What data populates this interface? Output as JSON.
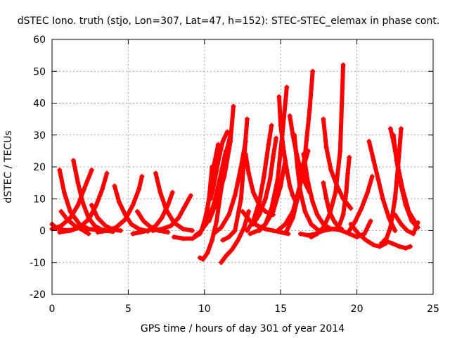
{
  "chart_data": {
    "type": "scatter",
    "title": "dSTEC Iono. truth (stjo, Lon=307, Lat=47, h=152): STEC-STEC_elemax in phase cont.",
    "xlabel": "GPS time / hours of day 301 of year 2014",
    "ylabel": "dSTEC  / TECUs",
    "xlim": [
      0,
      25
    ],
    "ylim": [
      -20,
      60
    ],
    "xticks": [
      0,
      5,
      10,
      15,
      20,
      25
    ],
    "yticks": [
      -20,
      -10,
      0,
      10,
      20,
      30,
      40,
      50,
      60
    ],
    "grid": true,
    "marker": "+",
    "color": "#ff0000",
    "series": [
      {
        "x": [
          0.0,
          0.3,
          0.7,
          1.1,
          1.4
        ],
        "y": [
          2,
          0.8,
          0.2,
          0.1,
          0.3
        ]
      },
      {
        "x": [
          0.5,
          0.8,
          1.2,
          1.8,
          2.4,
          3.0
        ],
        "y": [
          19,
          12,
          6,
          2,
          0.5,
          0.2
        ]
      },
      {
        "x": [
          0.6,
          1.0,
          1.5,
          2.0,
          2.4
        ],
        "y": [
          6,
          3.5,
          1.5,
          0.2,
          -1
        ]
      },
      {
        "x": [
          0.0,
          0.6,
          1.2,
          1.7,
          2.1,
          2.6
        ],
        "y": [
          0.5,
          1.5,
          4,
          8,
          13,
          19
        ]
      },
      {
        "x": [
          1.4,
          1.7,
          2.0,
          2.4,
          2.8,
          3.3,
          4.0
        ],
        "y": [
          22,
          15,
          9,
          4,
          1.5,
          0.2,
          -0.3
        ]
      },
      {
        "x": [
          0.5,
          1.2,
          1.8,
          2.4,
          2.9,
          3.3,
          3.6
        ],
        "y": [
          -0.5,
          0,
          1,
          3.5,
          8,
          13,
          18
        ]
      },
      {
        "x": [
          2.6,
          3.0,
          3.5,
          4.0,
          4.5
        ],
        "y": [
          8,
          4,
          1.5,
          0.3,
          0
        ]
      },
      {
        "x": [
          4.1,
          4.4,
          4.8,
          5.2,
          5.7,
          6.3
        ],
        "y": [
          14,
          9,
          5,
          2,
          0.5,
          -0.2
        ]
      },
      {
        "x": [
          3.0,
          3.6,
          4.2,
          4.8,
          5.3,
          5.7,
          5.9
        ],
        "y": [
          -0.5,
          0,
          1,
          3.5,
          8,
          13,
          17
        ]
      },
      {
        "x": [
          5.6,
          6.0,
          6.5,
          7.0,
          7.6
        ],
        "y": [
          6,
          3,
          1,
          0,
          -0.5
        ]
      },
      {
        "x": [
          6.8,
          7.1,
          7.5,
          8.0,
          8.6,
          9.2
        ],
        "y": [
          18,
          12,
          6.5,
          2.5,
          0.5,
          0
        ]
      },
      {
        "x": [
          5.3,
          5.8,
          6.3,
          6.8,
          7.2,
          7.6,
          7.9
        ],
        "y": [
          -1,
          -0.5,
          0,
          1.5,
          4,
          8,
          12
        ]
      },
      {
        "x": [
          6.6,
          7.2,
          7.8,
          8.3,
          8.7,
          9.1
        ],
        "y": [
          0,
          0.5,
          1.5,
          4,
          7.5,
          11
        ]
      },
      {
        "x": [
          8.0,
          8.6,
          9.2,
          9.7,
          10.0,
          10.3,
          10.5
        ],
        "y": [
          -2,
          -2.5,
          -2.5,
          -1,
          2,
          10,
          20
        ]
      },
      {
        "x": [
          9.7,
          9.9,
          10.2,
          10.5,
          10.8,
          11.0,
          11.3,
          11.5,
          11.7
        ],
        "y": [
          -8.5,
          -9,
          -7,
          -3,
          3,
          10,
          19,
          26,
          30
        ]
      },
      {
        "x": [
          9.8,
          10.0,
          10.2,
          10.4,
          10.6,
          10.9
        ],
        "y": [
          0,
          3,
          7,
          13,
          20,
          27
        ]
      },
      {
        "x": [
          9.4,
          9.7,
          10.1,
          10.6,
          11.0,
          11.4
        ],
        "y": [
          -1.5,
          -0.5,
          2,
          8,
          16,
          25
        ]
      },
      {
        "x": [
          10.4,
          10.6,
          10.8,
          11.0,
          11.2,
          11.5
        ],
        "y": [
          10,
          14,
          19,
          24,
          28,
          31
        ]
      },
      {
        "x": [
          11.1,
          11.4,
          11.8,
          12.2,
          12.6,
          12.9
        ],
        "y": [
          -10,
          -8,
          -6,
          -3,
          1,
          6
        ]
      },
      {
        "x": [
          10.6,
          11.1,
          11.6,
          12.0,
          12.4,
          12.7
        ],
        "y": [
          -1,
          1,
          5,
          11,
          20,
          28
        ]
      },
      {
        "x": [
          10.3,
          10.8,
          11.3,
          11.7,
          11.9
        ],
        "y": [
          3,
          9,
          17,
          28,
          39
        ]
      },
      {
        "x": [
          11.2,
          11.6,
          12.0,
          12.4,
          12.8
        ],
        "y": [
          -3,
          -2,
          0,
          10,
          35
        ]
      },
      {
        "x": [
          12.7,
          12.9,
          13.2,
          13.6,
          14.0,
          14.5
        ],
        "y": [
          24,
          18,
          12,
          8,
          6,
          5
        ]
      },
      {
        "x": [
          12.5,
          13.0,
          13.5,
          14.0,
          14.5,
          15.0,
          15.5
        ],
        "y": [
          6,
          3,
          1.5,
          0.5,
          0,
          -0.5,
          -1
        ]
      },
      {
        "x": [
          12.8,
          13.2,
          13.6,
          13.9,
          14.2,
          14.4
        ],
        "y": [
          0,
          3,
          9,
          17,
          27,
          33
        ]
      },
      {
        "x": [
          13.2,
          13.6,
          14.0,
          14.3,
          14.5,
          14.7
        ],
        "y": [
          2,
          5,
          10,
          16,
          23,
          29
        ]
      },
      {
        "x": [
          13.0,
          13.5,
          14.0,
          14.5,
          15.0,
          15.3
        ],
        "y": [
          -1,
          0,
          2,
          6,
          14,
          22
        ]
      },
      {
        "x": [
          13.6,
          14.0,
          14.4,
          14.8,
          15.1,
          15.4
        ],
        "y": [
          0,
          2,
          7,
          16,
          30,
          45
        ]
      },
      {
        "x": [
          14.9,
          15.0,
          15.2,
          15.4,
          15.6,
          15.8,
          16.0
        ],
        "y": [
          42,
          33,
          25,
          19,
          14,
          11,
          9
        ]
      },
      {
        "x": [
          15.6,
          15.8,
          16.0,
          16.2,
          16.4,
          16.6,
          16.9
        ],
        "y": [
          36,
          30,
          25,
          21,
          18,
          15,
          12
        ]
      },
      {
        "x": [
          15.9,
          16.1,
          16.3,
          16.6,
          17.0,
          17.5
        ],
        "y": [
          30,
          20,
          12,
          6,
          2,
          0
        ]
      },
      {
        "x": [
          14.8,
          15.3,
          15.8,
          16.2,
          16.5,
          16.8
        ],
        "y": [
          0,
          2,
          6,
          13,
          20,
          25
        ]
      },
      {
        "x": [
          15.4,
          15.8,
          16.2,
          16.6,
          16.9,
          17.1
        ],
        "y": [
          0,
          4,
          12,
          24,
          38,
          50
        ]
      },
      {
        "x": [
          16.5,
          16.8,
          17.1,
          17.4,
          17.8,
          18.3
        ],
        "y": [
          24,
          15,
          9,
          5,
          2,
          0.5
        ]
      },
      {
        "x": [
          16.3,
          16.8,
          17.3,
          17.8,
          18.4,
          19.0
        ],
        "y": [
          -1,
          -1.5,
          -1,
          0,
          0.5,
          0.5
        ]
      },
      {
        "x": [
          17.8,
          18.0,
          18.3,
          18.7,
          19.1,
          19.6
        ],
        "y": [
          35,
          26,
          19,
          14,
          10,
          7
        ]
      },
      {
        "x": [
          17.8,
          18.0,
          18.2,
          18.5,
          18.8
        ],
        "y": [
          15,
          10,
          6,
          3,
          1
        ]
      },
      {
        "x": [
          17.0,
          17.4,
          17.8,
          18.2,
          18.6,
          18.9,
          19.1
        ],
        "y": [
          -2,
          -1,
          1,
          5,
          12,
          25,
          52
        ]
      },
      {
        "x": [
          18.8,
          19.1,
          19.3,
          19.4,
          19.5
        ],
        "y": [
          1,
          5,
          12,
          18,
          23
        ]
      },
      {
        "x": [
          18.5,
          19.0,
          19.5,
          20.0,
          20.5,
          20.9
        ],
        "y": [
          0.5,
          0,
          -1,
          -2,
          -1,
          3
        ]
      },
      {
        "x": [
          19.6,
          20.1,
          20.6,
          21.1,
          21.5,
          21.9
        ],
        "y": [
          2,
          -1,
          -3,
          -4.5,
          -5,
          -4
        ]
      },
      {
        "x": [
          20.8,
          21.1,
          21.4,
          21.7,
          22.1,
          22.5
        ],
        "y": [
          28,
          22,
          16,
          10,
          4,
          0
        ]
      },
      {
        "x": [
          19.5,
          19.9,
          20.3,
          20.7,
          21.0
        ],
        "y": [
          0,
          3,
          7,
          12,
          17
        ]
      },
      {
        "x": [
          21.6,
          21.9,
          22.2,
          22.5,
          22.7,
          22.9
        ],
        "y": [
          -4,
          -3,
          1,
          10,
          20,
          32
        ]
      },
      {
        "x": [
          22.2,
          22.4,
          22.7,
          23.0,
          23.4,
          23.9
        ],
        "y": [
          32,
          28,
          20,
          13,
          6,
          2
        ]
      },
      {
        "x": [
          22.4,
          22.6,
          22.9,
          23.2,
          23.6,
          24.0
        ],
        "y": [
          30,
          22,
          14,
          8,
          3,
          1
        ]
      },
      {
        "x": [
          21.8,
          22.3,
          22.8,
          23.2,
          23.5
        ],
        "y": [
          -3,
          -4,
          -5,
          -5.5,
          -5
        ]
      },
      {
        "x": [
          22.5,
          22.9,
          23.3,
          23.7,
          24.0
        ],
        "y": [
          5,
          2,
          0,
          -1,
          2.5
        ]
      }
    ]
  }
}
